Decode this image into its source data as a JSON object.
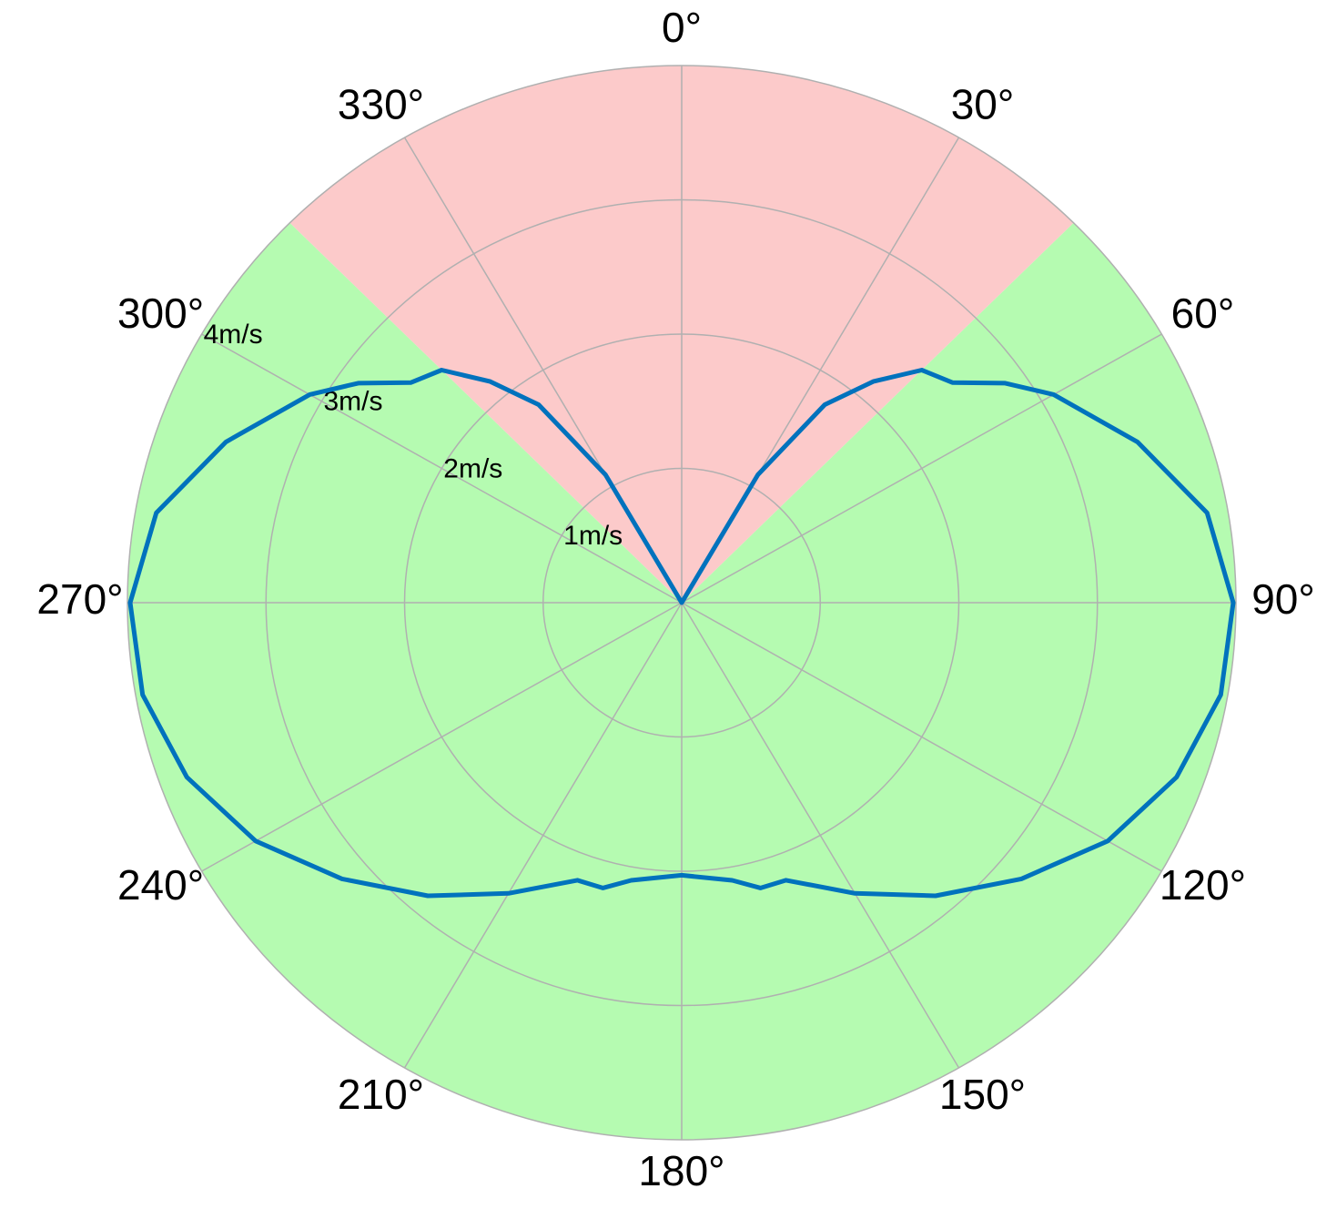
{
  "chart_data": {
    "type": "polar",
    "theta_direction": "clockwise",
    "theta_zero": "top",
    "sectors": [
      {
        "start": 315,
        "end": 45,
        "color": "#fccaca"
      },
      {
        "start": 45,
        "end": 315,
        "color": "#b5fbb1"
      }
    ],
    "thetaticks": [
      {
        "value": 0,
        "label": "0°"
      },
      {
        "value": 30,
        "label": "30°"
      },
      {
        "value": 60,
        "label": "60°"
      },
      {
        "value": 90,
        "label": "90°"
      },
      {
        "value": 120,
        "label": "120°"
      },
      {
        "value": 150,
        "label": "150°"
      },
      {
        "value": 180,
        "label": "180°"
      },
      {
        "value": 210,
        "label": "210°"
      },
      {
        "value": 240,
        "label": "240°"
      },
      {
        "value": 270,
        "label": "270°"
      },
      {
        "value": 300,
        "label": "300°"
      },
      {
        "value": 330,
        "label": "330°"
      }
    ],
    "rlim": [
      0,
      4
    ],
    "rticks": [
      {
        "value": 1,
        "label": "1m/s"
      },
      {
        "value": 2,
        "label": "2m/s"
      },
      {
        "value": 3,
        "label": "3m/s"
      },
      {
        "value": 4,
        "label": "4m/s"
      }
    ],
    "grid": true,
    "series": [
      {
        "color": "#0072bd",
        "theta": [
          0,
          30,
          35,
          40,
          45,
          50,
          55,
          60,
          70,
          80,
          90,
          100,
          110,
          120,
          130,
          140,
          150,
          160,
          165,
          170,
          180,
          190,
          195,
          200,
          210,
          220,
          230,
          240,
          250,
          260,
          270,
          280,
          290,
          300,
          305,
          310,
          315,
          320,
          325,
          330
        ],
        "values": [
          0,
          1.1,
          1.8,
          2.15,
          2.45,
          2.55,
          2.85,
          3.1,
          3.5,
          3.85,
          3.98,
          3.95,
          3.8,
          3.55,
          3.2,
          2.85,
          2.5,
          2.2,
          2.2,
          2.1,
          2.03,
          2.1,
          2.2,
          2.2,
          2.5,
          2.85,
          3.2,
          3.55,
          3.8,
          3.95,
          3.98,
          3.85,
          3.5,
          3.1,
          2.85,
          2.55,
          2.45,
          2.15,
          1.8,
          1.1
        ]
      }
    ]
  }
}
